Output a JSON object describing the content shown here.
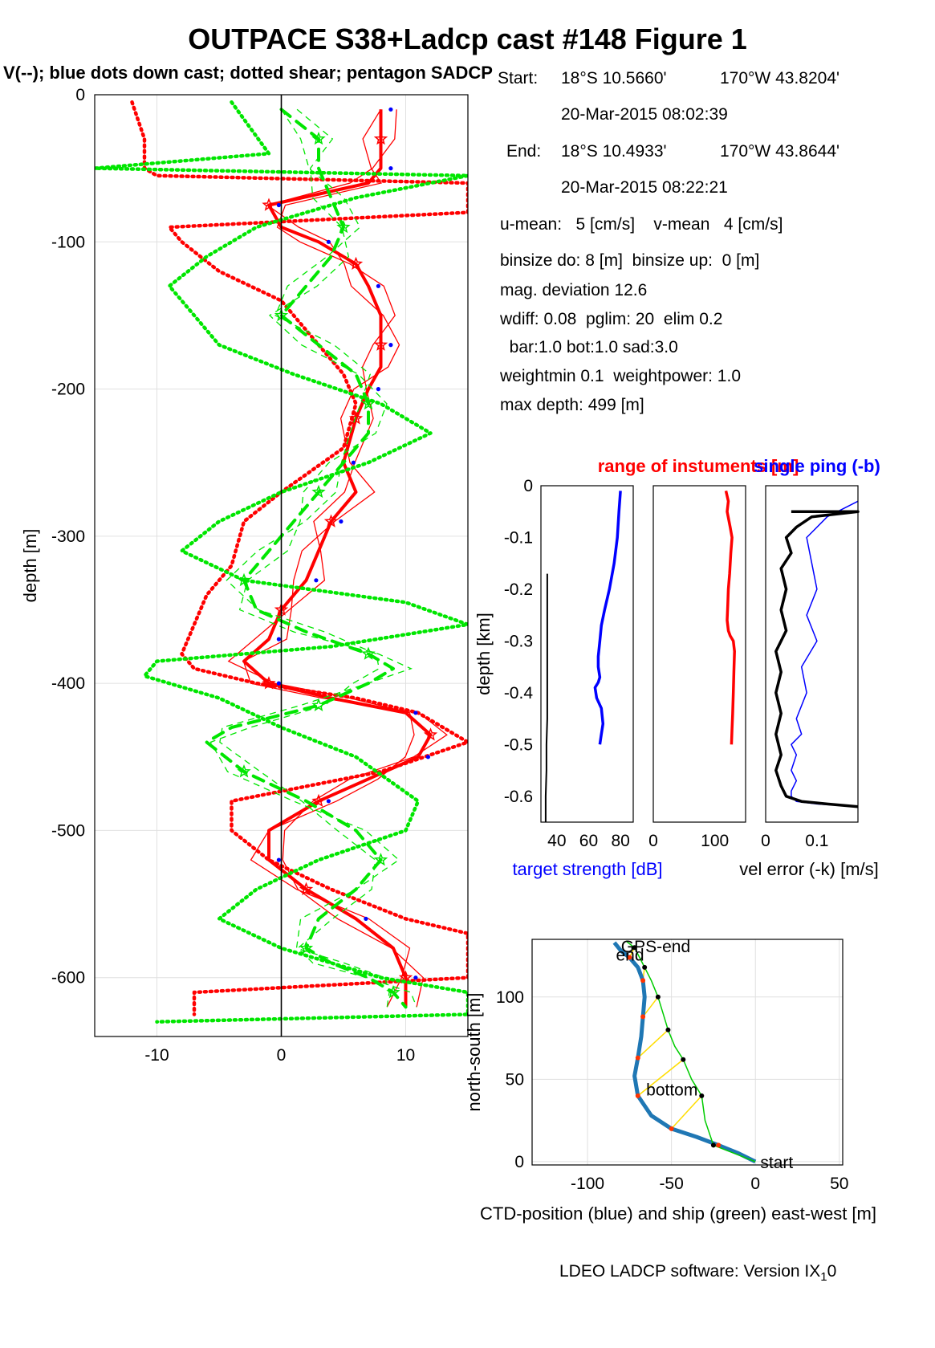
{
  "title": "OUTPACE S38+Ladcp cast #148  Figure 1",
  "subtitle": "V(--); blue dots down cast; dotted shear; pentagon SADCP",
  "info": {
    "start_label": "Start:",
    "start_lat": "18°S 10.5660'",
    "start_lon": "170°W 43.8204'",
    "start_time": "20-Mar-2015 08:02:39",
    "end_label": "End:",
    "end_lat": "18°S 10.4933'",
    "end_lon": "170°W 43.8644'",
    "end_time": "20-Mar-2015 08:22:21",
    "means": "u-mean:   5 [cm/s]    v-mean   4 [cm/s]",
    "binsize": "binsize do: 8 [m]  binsize up:  0 [m]",
    "magdev": "mag. deviation 12.6",
    "wdiff": "wdiff: 0.08  pglim: 20  elim 0.2",
    "bar": "  bar:1.0 bot:1.0 sad:3.0",
    "weight": "weightmin 0.1  weightpower: 1.0",
    "maxdepth": "max depth: 499 [m]"
  },
  "footer": {
    "text": "LDEO LADCP software: Version IX",
    "sub": "1",
    "tail": "0"
  },
  "colors": {
    "u": "#ff0000",
    "v": "#00e600",
    "dots": "#0000ff",
    "ts": "#0000ff",
    "err": "#000000",
    "ship": "#00cc00",
    "ctd": "#1f77b4",
    "link": "#ffdd00"
  },
  "chart_data": [
    {
      "id": "velocity_profile",
      "type": "line",
      "ylabel": "depth [m]",
      "xlim": [
        -15,
        15
      ],
      "ylim": [
        -640,
        0
      ],
      "xticks": [
        -10,
        0,
        10
      ],
      "yticks": [
        0,
        -100,
        -200,
        -300,
        -400,
        -500,
        -600
      ],
      "xtick_labels": [
        "-10",
        "0",
        "10"
      ],
      "ytick_labels": [
        "0",
        "-100",
        "-200",
        "-300",
        "-400",
        "-500",
        "-600"
      ],
      "grid": true,
      "series": [
        {
          "name": "u",
          "color": "#ff0000",
          "style": "solid-thick",
          "x": [
            8,
            8,
            8,
            7,
            -1,
            0,
            3,
            6,
            7,
            8,
            8,
            8,
            7,
            6,
            5,
            6,
            4,
            3,
            2,
            0,
            -1,
            -3,
            -1,
            4,
            10,
            12,
            11,
            7,
            3,
            -1,
            -1,
            2,
            6,
            9,
            10,
            10
          ],
          "y": [
            -10,
            -30,
            -50,
            -60,
            -75,
            -90,
            -100,
            -115,
            -130,
            -150,
            -170,
            -185,
            -200,
            -220,
            -250,
            -270,
            -290,
            -310,
            -330,
            -350,
            -370,
            -385,
            -400,
            -410,
            -420,
            -435,
            -450,
            -465,
            -480,
            -500,
            -520,
            -540,
            -560,
            -580,
            -600,
            -620
          ]
        },
        {
          "name": "u shear",
          "color": "#ff0000",
          "style": "dotted",
          "x": [
            -12,
            -11,
            -11,
            -10,
            15,
            15,
            -9,
            -8,
            -5,
            0,
            2,
            5,
            6,
            5,
            0,
            -3,
            -4,
            -6,
            -7,
            -8,
            -7,
            -2,
            6,
            11,
            13,
            15,
            8,
            2,
            -4,
            -4,
            -1,
            4,
            10,
            15,
            15,
            -7,
            -7
          ],
          "y": [
            -5,
            -30,
            -50,
            -55,
            -60,
            -80,
            -90,
            -100,
            -120,
            -140,
            -160,
            -190,
            -210,
            -240,
            -270,
            -290,
            -320,
            -340,
            -360,
            -380,
            -390,
            -400,
            -410,
            -420,
            -430,
            -440,
            -460,
            -470,
            -480,
            -500,
            -520,
            -540,
            -560,
            -570,
            -600,
            -610,
            -625
          ]
        },
        {
          "name": "v",
          "color": "#00e600",
          "style": "dashed-thick",
          "x": [
            0,
            3,
            3,
            4,
            5,
            4,
            2,
            0,
            3,
            6,
            7,
            7,
            5,
            3,
            1,
            -1,
            -3,
            -2,
            2,
            7,
            9,
            7,
            3,
            -4,
            -6,
            -3,
            2,
            6,
            8,
            6,
            3,
            2,
            4,
            7,
            9,
            10
          ],
          "y": [
            -10,
            -30,
            -50,
            -70,
            -90,
            -110,
            -130,
            -150,
            -170,
            -190,
            -210,
            -230,
            -250,
            -270,
            -290,
            -310,
            -330,
            -350,
            -365,
            -380,
            -390,
            -400,
            -415,
            -430,
            -440,
            -460,
            -480,
            -500,
            -520,
            -540,
            -560,
            -580,
            -590,
            -600,
            -610,
            -620
          ]
        },
        {
          "name": "v shear",
          "color": "#00e600",
          "style": "dotted",
          "x": [
            -4,
            -1,
            -15,
            15,
            6,
            -2,
            -6,
            -9,
            -7,
            -5,
            1,
            8,
            12,
            7,
            0,
            -5,
            -8,
            -3,
            10,
            15,
            4,
            -10,
            -11,
            -5,
            0,
            6,
            11,
            10,
            3,
            -2,
            -5,
            0,
            8,
            15,
            15,
            -10
          ],
          "y": [
            -5,
            -40,
            -50,
            -55,
            -70,
            -90,
            -110,
            -130,
            -150,
            -170,
            -190,
            -210,
            -230,
            -250,
            -270,
            -290,
            -310,
            -330,
            -345,
            -360,
            -375,
            -385,
            -395,
            -410,
            -430,
            -450,
            -480,
            -500,
            -520,
            -540,
            -560,
            -580,
            -600,
            -610,
            -625,
            -630
          ]
        }
      ]
    },
    {
      "id": "target_strength",
      "type": "line",
      "title": "range of instuments [m]",
      "title_overlap": "single ping (-b)",
      "ylabel": "depth [km]",
      "xlabel": "target strength [dB]",
      "ylim": [
        -0.65,
        0
      ],
      "xlim": [
        30,
        88
      ],
      "yticks": [
        0,
        -0.1,
        -0.2,
        -0.3,
        -0.4,
        -0.5,
        -0.6
      ],
      "ytick_labels": [
        "0",
        "-0.1",
        "-0.2",
        "-0.3",
        "-0.4",
        "-0.5",
        "-0.6"
      ],
      "xticks": [
        40,
        60,
        80
      ],
      "xtick_labels": [
        "40",
        "60",
        "80"
      ],
      "series": [
        {
          "name": "target strength",
          "color": "#0000ff",
          "x": [
            80,
            79,
            78,
            76,
            73,
            70,
            68,
            67,
            66,
            66,
            67,
            66,
            64,
            65,
            68,
            69,
            68,
            67
          ],
          "y": [
            -0.01,
            -0.05,
            -0.1,
            -0.15,
            -0.2,
            -0.24,
            -0.27,
            -0.3,
            -0.33,
            -0.35,
            -0.37,
            -0.38,
            -0.39,
            -0.41,
            -0.43,
            -0.46,
            -0.48,
            -0.5
          ]
        },
        {
          "name": "range",
          "color": "#000000",
          "x": [
            34,
            34,
            34,
            34,
            33.5,
            33.5,
            33,
            33
          ],
          "y": [
            -0.17,
            -0.25,
            -0.35,
            -0.45,
            -0.5,
            -0.55,
            -0.6,
            -0.65
          ]
        }
      ]
    },
    {
      "id": "range_panel",
      "type": "line",
      "ylim": [
        -0.65,
        0
      ],
      "xlim": [
        0,
        150
      ],
      "xticks": [
        0,
        100
      ],
      "xtick_labels": [
        "0",
        "100"
      ],
      "series": [
        {
          "name": "range",
          "color": "#ff0000",
          "x": [
            118,
            122,
            120,
            125,
            128,
            126,
            124,
            122,
            121,
            120,
            122,
            125,
            130,
            132,
            131,
            130,
            129,
            128,
            127
          ],
          "y": [
            -0.01,
            -0.03,
            -0.05,
            -0.08,
            -0.1,
            -0.13,
            -0.17,
            -0.2,
            -0.23,
            -0.26,
            -0.28,
            -0.29,
            -0.3,
            -0.32,
            -0.36,
            -0.4,
            -0.44,
            -0.47,
            -0.5
          ]
        }
      ]
    },
    {
      "id": "velocity_error",
      "type": "line",
      "xlabel": "vel error (-k) [m/s]",
      "ylim": [
        -0.65,
        0
      ],
      "xlim": [
        0,
        0.18
      ],
      "xticks": [
        0,
        0.1
      ],
      "xtick_labels": [
        "0",
        "0.1"
      ],
      "series": [
        {
          "name": "single ping",
          "color": "#0000ff",
          "x": [
            0.18,
            0.16,
            0.12,
            0.08,
            0.09,
            0.1,
            0.08,
            0.1,
            0.07,
            0.08,
            0.06,
            0.07,
            0.05,
            0.06,
            0.05,
            0.06,
            0.05,
            0.05,
            0.06,
            0.1,
            0.18
          ],
          "y": [
            -0.03,
            -0.04,
            -0.06,
            -0.1,
            -0.15,
            -0.2,
            -0.25,
            -0.3,
            -0.35,
            -0.4,
            -0.45,
            -0.48,
            -0.5,
            -0.52,
            -0.55,
            -0.57,
            -0.59,
            -0.6,
            -0.61,
            -0.615,
            -0.62
          ]
        },
        {
          "name": "vel error",
          "color": "#000000",
          "x": [
            0.05,
            0.18,
            0.09,
            0.06,
            0.04,
            0.05,
            0.03,
            0.04,
            0.03,
            0.04,
            0.02,
            0.03,
            0.02,
            0.03,
            0.02,
            0.03,
            0.02,
            0.03,
            0.04,
            0.07,
            0.12,
            0.18
          ],
          "y": [
            -0.05,
            -0.05,
            -0.06,
            -0.08,
            -0.1,
            -0.13,
            -0.16,
            -0.2,
            -0.24,
            -0.28,
            -0.32,
            -0.36,
            -0.4,
            -0.44,
            -0.48,
            -0.52,
            -0.55,
            -0.58,
            -0.6,
            -0.61,
            -0.615,
            -0.62
          ]
        }
      ]
    },
    {
      "id": "position",
      "type": "line",
      "xlabel": "CTD-position (blue) and ship (green) east-west [m]",
      "ylabel": "north-south [m]",
      "xlim": [
        -133,
        52
      ],
      "ylim": [
        -2,
        135
      ],
      "xticks": [
        -100,
        -50,
        0,
        50
      ],
      "xtick_labels": [
        "-100",
        "-50",
        "0",
        "50"
      ],
      "yticks": [
        0,
        50,
        100
      ],
      "ytick_labels": [
        "0",
        "50",
        "100"
      ],
      "grid": true,
      "annotations": [
        {
          "text": "start",
          "x": 2,
          "y": 0
        },
        {
          "text": "bottom",
          "x": -66,
          "y": 44
        },
        {
          "text": "end",
          "x": -84,
          "y": 126
        },
        {
          "text": "GPS-end",
          "x": -81,
          "y": 131
        }
      ],
      "series": [
        {
          "name": "CTD-position",
          "color": "#1f77b4",
          "x": [
            0,
            -10,
            -22,
            -35,
            -50,
            -62,
            -70,
            -72,
            -70,
            -68,
            -67,
            -66,
            -67,
            -70,
            -75,
            -80,
            -84
          ],
          "y": [
            0,
            5,
            10,
            15,
            20,
            28,
            40,
            52,
            63,
            76,
            88,
            100,
            110,
            118,
            124,
            128,
            133
          ]
        },
        {
          "name": "ship",
          "color": "#00cc00",
          "x": [
            0,
            -10,
            -25,
            -30,
            -32,
            -38,
            -43,
            -48,
            -52,
            -55,
            -58,
            -62,
            -66,
            -69,
            -72,
            -77
          ],
          "y": [
            0,
            4,
            10,
            25,
            40,
            50,
            62,
            70,
            80,
            90,
            100,
            110,
            118,
            124,
            130,
            134
          ]
        }
      ]
    }
  ]
}
